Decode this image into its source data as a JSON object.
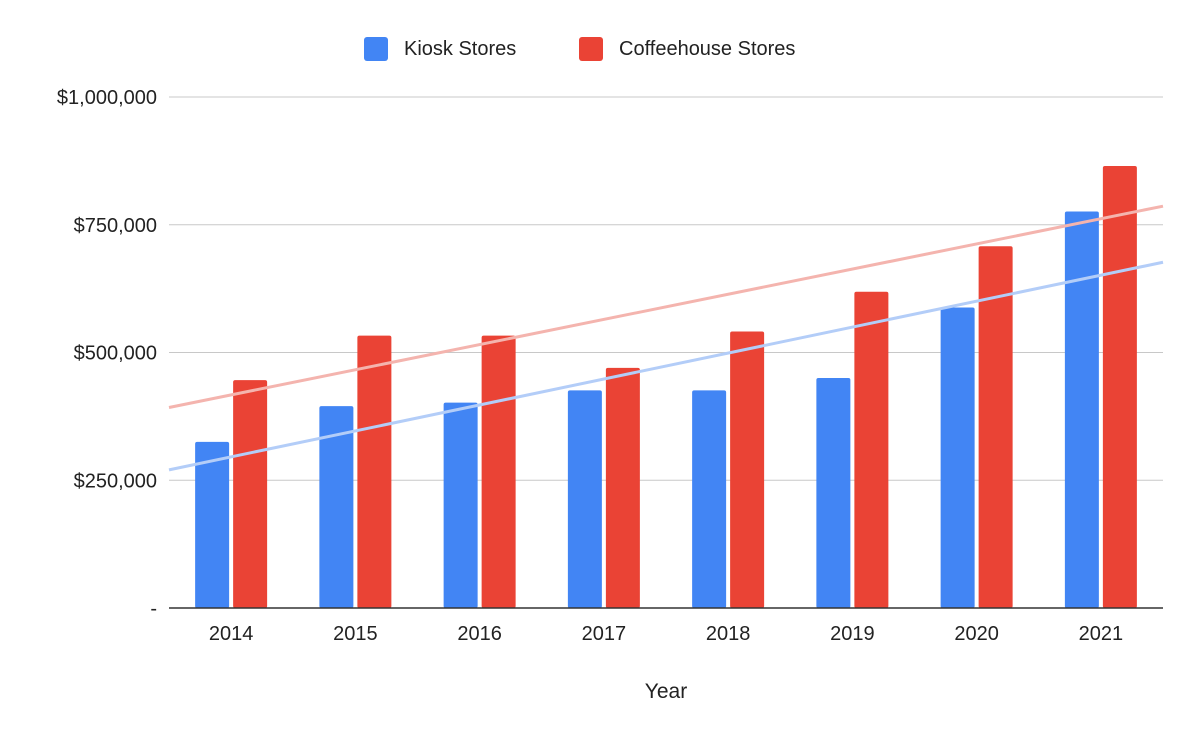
{
  "chart_data": {
    "type": "bar",
    "title": "",
    "xlabel": "Year",
    "ylabel": "",
    "categories": [
      "2014",
      "2015",
      "2016",
      "2017",
      "2018",
      "2019",
      "2020",
      "2021"
    ],
    "series": [
      {
        "name": "Kiosk Stores",
        "color": "#4285F4",
        "values": [
          325000,
          395000,
          402000,
          426000,
          426000,
          450000,
          588000,
          776000
        ]
      },
      {
        "name": "Coffeehouse Stores",
        "color": "#EA4335",
        "values": [
          446000,
          533000,
          533000,
          470000,
          541000,
          619000,
          708000,
          865000
        ]
      }
    ],
    "trendlines": [
      {
        "series": "Kiosk Stores",
        "type": "linear",
        "color": "#B3CDF8"
      },
      {
        "series": "Coffeehouse Stores",
        "type": "linear",
        "color": "#F4B4AE"
      }
    ],
    "ylim": [
      0,
      1000000
    ],
    "y_ticks": [
      0,
      250000,
      500000,
      750000,
      1000000
    ],
    "y_tick_labels": [
      "-",
      "$250,000",
      "$500,000",
      "$750,000",
      "$1,000,000"
    ],
    "grid": true,
    "legend_position": "top"
  }
}
